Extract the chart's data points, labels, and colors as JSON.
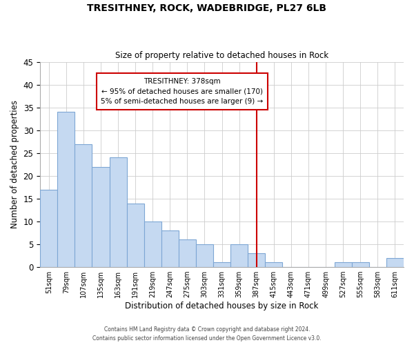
{
  "title": "TRESITHNEY, ROCK, WADEBRIDGE, PL27 6LB",
  "subtitle": "Size of property relative to detached houses in Rock",
  "xlabel": "Distribution of detached houses by size in Rock",
  "ylabel": "Number of detached properties",
  "footer1": "Contains HM Land Registry data © Crown copyright and database right 2024.",
  "footer2": "Contains public sector information licensed under the Open Government Licence v3.0.",
  "bin_labels": [
    "51sqm",
    "79sqm",
    "107sqm",
    "135sqm",
    "163sqm",
    "191sqm",
    "219sqm",
    "247sqm",
    "275sqm",
    "303sqm",
    "331sqm",
    "359sqm",
    "387sqm",
    "415sqm",
    "443sqm",
    "471sqm",
    "499sqm",
    "527sqm",
    "555sqm",
    "583sqm",
    "611sqm"
  ],
  "bar_values": [
    17,
    34,
    27,
    22,
    24,
    14,
    10,
    8,
    6,
    5,
    1,
    5,
    3,
    1,
    0,
    0,
    0,
    1,
    1,
    0,
    2
  ],
  "bar_color": "#c5d9f1",
  "bar_edge_color": "#7da6d4",
  "vline_index": 12,
  "vline_color": "#cc0000",
  "annotation_title": "TRESITHNEY: 378sqm",
  "annotation_line1": "← 95% of detached houses are smaller (170)",
  "annotation_line2": "5% of semi-detached houses are larger (9) →",
  "annotation_box_color": "#ffffff",
  "annotation_box_edge": "#cc0000",
  "ylim": [
    0,
    45
  ],
  "yticks": [
    0,
    5,
    10,
    15,
    20,
    25,
    30,
    35,
    40,
    45
  ],
  "title_fontsize": 10,
  "subtitle_fontsize": 8.5
}
